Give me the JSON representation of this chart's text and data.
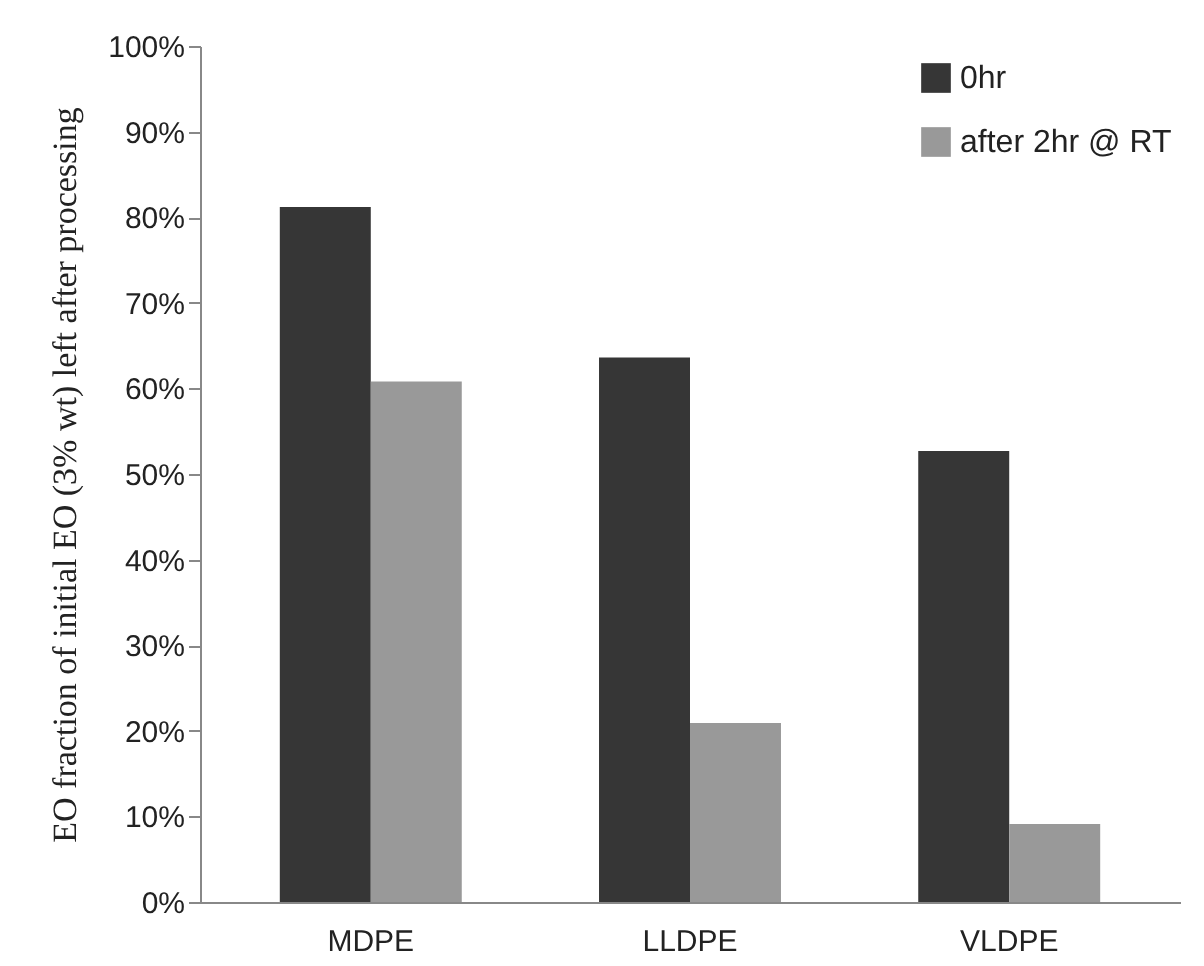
{
  "chart_data": {
    "type": "bar",
    "ylabel": "EO fraction of initial EO (3% wt) left after processing",
    "categories": [
      "MDPE",
      "LLDPE",
      "VLDPE"
    ],
    "series": [
      {
        "name": "0hr",
        "color": "#363636",
        "values": [
          81.2,
          63.6,
          52.7
        ]
      },
      {
        "name": "after 2hr @ RT",
        "color": "#999999",
        "values": [
          60.8,
          20.9,
          9.1
        ]
      }
    ],
    "ylim": [
      0,
      100
    ],
    "yticks": [
      {
        "value": 0,
        "label": "0%"
      },
      {
        "value": 10,
        "label": "10%"
      },
      {
        "value": 20,
        "label": "20%"
      },
      {
        "value": 30,
        "label": "30%"
      },
      {
        "value": 40,
        "label": "40%"
      },
      {
        "value": 50,
        "label": "50%"
      },
      {
        "value": 60,
        "label": "60%"
      },
      {
        "value": 70,
        "label": "70%"
      },
      {
        "value": 80,
        "label": "80%"
      },
      {
        "value": 90,
        "label": "90%"
      },
      {
        "value": 100,
        "label": "100%"
      }
    ],
    "legend": "top right"
  }
}
